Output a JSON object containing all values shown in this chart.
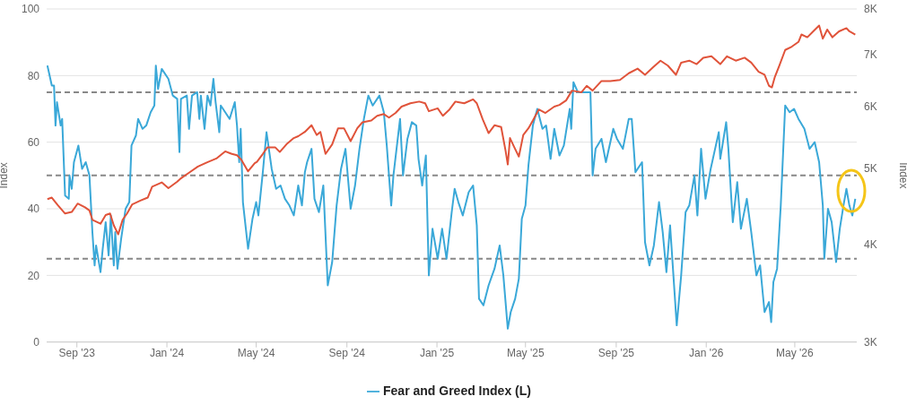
{
  "chart_data": {
    "type": "line",
    "ylabel": "Index",
    "y2label": "Index",
    "xlim": [
      "2023-07-22",
      "2026-07-24"
    ],
    "xticks": [
      {
        "value": "2023-09-01",
        "label": "Sep '23"
      },
      {
        "value": "2024-01-01",
        "label": "Jan '24"
      },
      {
        "value": "2024-05-01",
        "label": "May '24"
      },
      {
        "value": "2024-09-01",
        "label": "Sep '24"
      },
      {
        "value": "2025-01-01",
        "label": "Jan '25"
      },
      {
        "value": "2025-05-01",
        "label": "May '25"
      },
      {
        "value": "2025-09-01",
        "label": "Sep '25"
      },
      {
        "value": "2026-01-01",
        "label": "Jan '26"
      },
      {
        "value": "2026-05-01",
        "label": "May '26"
      }
    ],
    "ylim": [
      0,
      100
    ],
    "yticks": [
      0,
      20,
      40,
      60,
      80,
      100
    ],
    "y2lim": [
      3000,
      8000
    ],
    "y2ticks": [
      {
        "value": 3000,
        "label": "3K"
      },
      {
        "value": 4000,
        "label": "4K"
      },
      {
        "value": 5000,
        "label": "5K"
      },
      {
        "value": 6000,
        "label": "6K"
      },
      {
        "value": 7000,
        "label": "7K"
      },
      {
        "value": 8000,
        "label": "8K"
      }
    ],
    "log": "y2",
    "grid": "y",
    "legend": "bottom",
    "marker": "none",
    "line_style": "solid",
    "ref_lines": [
      {
        "axis": "y",
        "value": 25,
        "color": "#888888",
        "line_style": "dashed"
      },
      {
        "axis": "y",
        "value": 50,
        "color": "#888888",
        "line_style": "dashed"
      },
      {
        "axis": "y",
        "value": 75,
        "color": "#888888",
        "line_style": "dashed"
      }
    ],
    "series": [
      {
        "name": "Fear and Greed Index (L)",
        "color": "#3aa8d8",
        "x": [
          "2023-07-23",
          "2023-07-26",
          "2023-07-29",
          "2023-08-01",
          "2023-08-03",
          "2023-08-05",
          "2023-08-10",
          "2023-08-12",
          "2023-08-16",
          "2023-08-21",
          "2023-08-22",
          "2023-08-25",
          "2023-08-28",
          "2023-09-03",
          "2023-09-08",
          "2023-09-13",
          "2023-09-18",
          "2023-09-22",
          "2023-09-25",
          "2023-09-27",
          "2023-10-03",
          "2023-10-06",
          "2023-10-10",
          "2023-10-14",
          "2023-10-17",
          "2023-10-21",
          "2023-10-23",
          "2023-10-26",
          "2023-10-31",
          "2023-11-06",
          "2023-11-11",
          "2023-11-14",
          "2023-11-20",
          "2023-11-23",
          "2023-11-29",
          "2023-12-04",
          "2023-12-10",
          "2023-12-15",
          "2023-12-17",
          "2023-12-20",
          "2023-12-25",
          "2024-01-03",
          "2024-01-09",
          "2024-01-15",
          "2024-01-18",
          "2024-01-20",
          "2024-01-28",
          "2024-01-31",
          "2024-02-04",
          "2024-02-11",
          "2024-02-14",
          "2024-02-16",
          "2024-02-21",
          "2024-02-25",
          "2024-02-29",
          "2024-03-04",
          "2024-03-07",
          "2024-03-12",
          "2024-03-14",
          "2024-03-20",
          "2024-03-26",
          "2024-04-02",
          "2024-04-05",
          "2024-04-08",
          "2024-04-10",
          "2024-04-13",
          "2024-04-20",
          "2024-04-26",
          "2024-05-01",
          "2024-05-04",
          "2024-05-10",
          "2024-05-15",
          "2024-05-22",
          "2024-05-28",
          "2024-06-03",
          "2024-06-09",
          "2024-06-15",
          "2024-06-21",
          "2024-06-27",
          "2024-07-02",
          "2024-07-06",
          "2024-07-09",
          "2024-07-15",
          "2024-07-19",
          "2024-07-25",
          "2024-07-31",
          "2024-08-06",
          "2024-08-12",
          "2024-08-18",
          "2024-08-24",
          "2024-08-30",
          "2024-09-06",
          "2024-09-12",
          "2024-09-18",
          "2024-09-24",
          "2024-09-30",
          "2024-10-06",
          "2024-10-15",
          "2024-10-21",
          "2024-10-25",
          "2024-10-31",
          "2024-11-03",
          "2024-11-12",
          "2024-11-16",
          "2024-11-22",
          "2024-11-28",
          "2024-12-04",
          "2024-12-07",
          "2024-12-12",
          "2024-12-17",
          "2024-12-21",
          "2024-12-26",
          "2025-01-02",
          "2025-01-08",
          "2025-01-14",
          "2025-01-21",
          "2025-01-25",
          "2025-01-30",
          "2025-02-05",
          "2025-02-13",
          "2025-02-19",
          "2025-02-24",
          "2025-02-27",
          "2025-03-05",
          "2025-03-12",
          "2025-03-20",
          "2025-03-27",
          "2025-04-01",
          "2025-04-07",
          "2025-04-11",
          "2025-04-17",
          "2025-04-22",
          "2025-04-26",
          "2025-05-01",
          "2025-05-05",
          "2025-05-11",
          "2025-05-17",
          "2025-05-24",
          "2025-05-29",
          "2025-06-04",
          "2025-06-09",
          "2025-06-16",
          "2025-06-22",
          "2025-06-30",
          "2025-07-02",
          "2025-07-05",
          "2025-07-11",
          "2025-07-19",
          "2025-07-28",
          "2025-07-31",
          "2025-08-04",
          "2025-08-12",
          "2025-08-18",
          "2025-08-28",
          "2025-09-02",
          "2025-09-10",
          "2025-09-18",
          "2025-09-22",
          "2025-09-27",
          "2025-10-06",
          "2025-10-10",
          "2025-10-16",
          "2025-10-22",
          "2025-10-29",
          "2025-11-03",
          "2025-11-08",
          "2025-11-13",
          "2025-11-22",
          "2025-11-28",
          "2025-12-04",
          "2025-12-09",
          "2025-12-16",
          "2025-12-20",
          "2025-12-25",
          "2025-12-31",
          "2026-01-07",
          "2026-01-13",
          "2026-01-18",
          "2026-01-20",
          "2026-01-28",
          "2026-01-31",
          "2026-02-04",
          "2026-02-06",
          "2026-02-12",
          "2026-02-17",
          "2026-02-25",
          "2026-03-03",
          "2026-03-10",
          "2026-03-15",
          "2026-03-21",
          "2026-03-27",
          "2026-03-30",
          "2026-04-02",
          "2026-04-07",
          "2026-04-12",
          "2026-04-18",
          "2026-04-24",
          "2026-04-30",
          "2026-05-06",
          "2026-05-14",
          "2026-05-21",
          "2026-05-28",
          "2026-06-03",
          "2026-06-08",
          "2026-06-10",
          "2026-06-15",
          "2026-06-20",
          "2026-06-26",
          "2026-07-01",
          "2026-07-06",
          "2026-07-10",
          "2026-07-14",
          "2026-07-18",
          "2026-07-22"
        ],
        "values": [
          83,
          80,
          77,
          77,
          65,
          72,
          65,
          67,
          44,
          43,
          50,
          46,
          54,
          59,
          52,
          54,
          50,
          33,
          23,
          29,
          21,
          28,
          36,
          26,
          38,
          23,
          33,
          22,
          31,
          40,
          42,
          59,
          62,
          67,
          64,
          65,
          69,
          71,
          83,
          76,
          82,
          79,
          74,
          73,
          57,
          73,
          74,
          64,
          74,
          75,
          67,
          74,
          64,
          74,
          71,
          79,
          72,
          63,
          71,
          69,
          67,
          72,
          65,
          54,
          64,
          42,
          28,
          37,
          42,
          38,
          51,
          63,
          52,
          46,
          47,
          43,
          41,
          38,
          47,
          41,
          51,
          54,
          58,
          43,
          39,
          47,
          17,
          24,
          41,
          52,
          58,
          40,
          47,
          58,
          67,
          74,
          71,
          74,
          69,
          59,
          41,
          50,
          67,
          50,
          61,
          66,
          65,
          55,
          47,
          56,
          20,
          34,
          25,
          34,
          25,
          39,
          46,
          42,
          38,
          45,
          47,
          35,
          13,
          11,
          17,
          22,
          29,
          20,
          4,
          9,
          13,
          19,
          37,
          41,
          53,
          65,
          70,
          64,
          65,
          55,
          64,
          56,
          59,
          70,
          64,
          78,
          75,
          75,
          75,
          50,
          58,
          61,
          54,
          64,
          61,
          58,
          67,
          67,
          51,
          54,
          30,
          23,
          29,
          42,
          33,
          21,
          35,
          5,
          20,
          39,
          41,
          50,
          38,
          58,
          43,
          52,
          58,
          63,
          55,
          66,
          58,
          43,
          36,
          48,
          34,
          43,
          33,
          20,
          23,
          9,
          12,
          6,
          18,
          22,
          41,
          71,
          69,
          70,
          67,
          64,
          58,
          60,
          54,
          41,
          25,
          40,
          36,
          24,
          34,
          41,
          46,
          41,
          38,
          43
        ]
      },
      {
        "color": "#e0533a",
        "axis": "y2",
        "x": [
          "2023-07-23",
          "2023-07-29",
          "2023-08-06",
          "2023-08-16",
          "2023-08-25",
          "2023-09-02",
          "2023-09-12",
          "2023-09-18",
          "2023-09-22",
          "2023-10-03",
          "2023-10-10",
          "2023-10-16",
          "2023-10-21",
          "2023-10-27",
          "2023-11-02",
          "2023-11-08",
          "2023-11-15",
          "2023-11-26",
          "2023-12-06",
          "2023-12-12",
          "2023-12-25",
          "2024-01-03",
          "2024-01-15",
          "2024-01-19",
          "2024-01-31",
          "2024-02-12",
          "2024-02-24",
          "2024-03-08",
          "2024-03-20",
          "2024-03-29",
          "2024-04-05",
          "2024-04-11",
          "2024-04-20",
          "2024-04-29",
          "2024-05-02",
          "2024-05-10",
          "2024-05-16",
          "2024-05-27",
          "2024-06-02",
          "2024-06-11",
          "2024-06-21",
          "2024-06-27",
          "2024-07-06",
          "2024-07-15",
          "2024-07-22",
          "2024-07-27",
          "2024-08-03",
          "2024-08-12",
          "2024-08-20",
          "2024-08-28",
          "2024-09-06",
          "2024-09-15",
          "2024-09-22",
          "2024-10-04",
          "2024-10-12",
          "2024-10-21",
          "2024-10-28",
          "2024-11-06",
          "2024-11-14",
          "2024-11-26",
          "2024-12-08",
          "2024-12-16",
          "2024-12-21",
          "2025-01-02",
          "2025-01-09",
          "2025-01-18",
          "2025-01-26",
          "2025-02-07",
          "2025-02-19",
          "2025-02-24",
          "2025-03-04",
          "2025-03-12",
          "2025-03-20",
          "2025-03-29",
          "2025-04-04",
          "2025-04-07",
          "2025-04-10",
          "2025-04-16",
          "2025-04-22",
          "2025-04-28",
          "2025-05-05",
          "2025-05-11",
          "2025-05-19",
          "2025-05-28",
          "2025-06-09",
          "2025-06-16",
          "2025-06-25",
          "2025-07-03",
          "2025-07-16",
          "2025-07-23",
          "2025-07-31",
          "2025-08-12",
          "2025-08-24",
          "2025-09-06",
          "2025-09-18",
          "2025-09-30",
          "2025-10-10",
          "2025-10-21",
          "2025-10-31",
          "2025-11-10",
          "2025-11-21",
          "2025-11-28",
          "2025-12-09",
          "2025-12-19",
          "2025-12-28",
          "2026-01-08",
          "2026-01-20",
          "2026-01-29",
          "2026-02-10",
          "2026-02-22",
          "2026-03-03",
          "2026-03-13",
          "2026-03-21",
          "2026-03-27",
          "2026-03-31",
          "2026-04-04",
          "2026-04-10",
          "2026-04-18",
          "2026-04-27",
          "2026-05-06",
          "2026-05-10",
          "2026-05-18",
          "2026-05-26",
          "2026-06-03",
          "2026-06-08",
          "2026-06-14",
          "2026-06-21",
          "2026-06-30",
          "2026-07-10",
          "2026-07-14",
          "2026-07-22"
        ],
        "values": [
          4570,
          4590,
          4490,
          4380,
          4400,
          4510,
          4460,
          4420,
          4300,
          4250,
          4360,
          4380,
          4230,
          4120,
          4300,
          4380,
          4500,
          4550,
          4590,
          4740,
          4800,
          4720,
          4810,
          4850,
          4940,
          5030,
          5090,
          5150,
          5260,
          5220,
          5200,
          5130,
          4960,
          5080,
          5100,
          5220,
          5320,
          5320,
          5250,
          5370,
          5470,
          5500,
          5570,
          5680,
          5520,
          5570,
          5220,
          5370,
          5630,
          5630,
          5420,
          5630,
          5730,
          5760,
          5840,
          5870,
          5810,
          5890,
          6000,
          6060,
          6090,
          6060,
          5920,
          5970,
          5840,
          5950,
          6090,
          6060,
          6130,
          6060,
          5780,
          5550,
          5680,
          5650,
          5270,
          5060,
          5470,
          5320,
          5180,
          5520,
          5630,
          5760,
          5950,
          5890,
          6000,
          6030,
          6110,
          6290,
          6260,
          6380,
          6290,
          6470,
          6470,
          6490,
          6620,
          6710,
          6590,
          6740,
          6870,
          6770,
          6590,
          6830,
          6870,
          6800,
          6930,
          6960,
          6800,
          6960,
          6870,
          6930,
          6830,
          6650,
          6590,
          6380,
          6350,
          6550,
          6770,
          7090,
          7160,
          7260,
          7420,
          7360,
          7490,
          7620,
          7330,
          7530,
          7360,
          7490,
          7560,
          7490,
          7420
        ]
      }
    ]
  }
}
